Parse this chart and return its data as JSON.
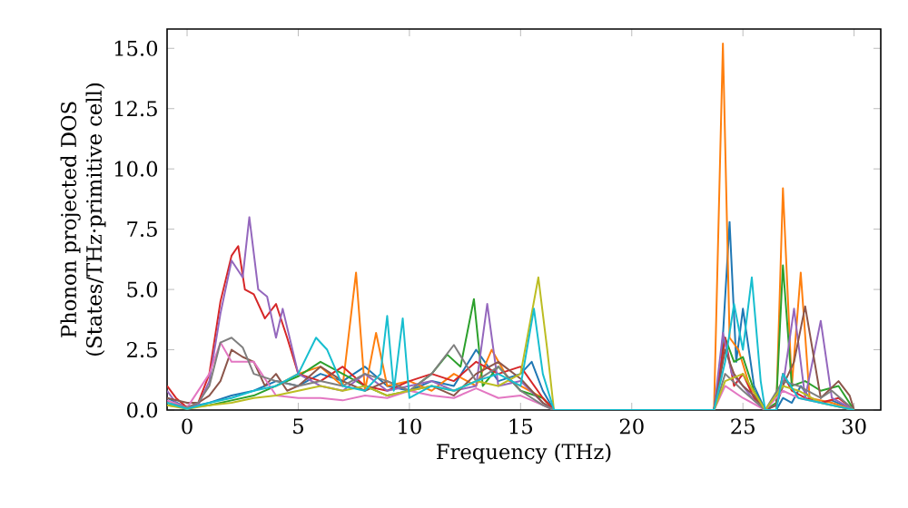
{
  "chart_data": {
    "type": "line",
    "xlabel": "Frequency (THz)",
    "ylabel": "Phonon projected DOS\n(States/THz·primitive cell)",
    "xlim": [
      -0.9,
      31.2
    ],
    "ylim": [
      0,
      15.8
    ],
    "xticks": [
      0,
      5,
      10,
      15,
      20,
      25,
      30
    ],
    "yticks": [
      {
        "value": 0,
        "label": "0.0"
      },
      {
        "value": 2.5,
        "label": "2.5"
      },
      {
        "value": 5,
        "label": "5.0"
      },
      {
        "value": 7.5,
        "label": "7.5"
      },
      {
        "value": 10,
        "label": "10.0"
      },
      {
        "value": 12.5,
        "label": "12.5"
      },
      {
        "value": 15,
        "label": "15.0"
      }
    ],
    "grid": false,
    "marker": "none",
    "line_style": "solid",
    "series": [
      {
        "color": "#1f77b4",
        "x": [
          -0.9,
          0,
          1,
          2,
          3,
          4,
          5,
          6,
          7,
          8,
          9,
          10,
          11,
          12,
          13,
          14,
          15,
          15.5,
          16,
          16.5,
          23.7,
          24.0,
          24.4,
          24.7,
          25.0,
          25.5,
          26,
          26.5,
          26.8,
          27.2,
          27.6,
          28,
          28.5,
          29,
          29.5,
          30
        ],
        "values": [
          0.5,
          0.1,
          0.3,
          0.6,
          0.8,
          1.2,
          1.0,
          1.5,
          1.2,
          1.8,
          1.0,
          0.8,
          1.2,
          1.0,
          2.5,
          1.2,
          1.5,
          2.0,
          0.8,
          0,
          0,
          1.5,
          7.8,
          2.0,
          4.2,
          1.0,
          0,
          0,
          0.5,
          0.3,
          1.0,
          0.5,
          0.3,
          0.4,
          0.2,
          0
        ]
      },
      {
        "color": "#ff7f0e",
        "x": [
          4,
          5,
          6,
          7,
          7.6,
          8,
          8.5,
          9,
          10,
          11,
          12,
          13,
          13.7,
          14.5,
          15,
          16,
          16.5,
          23.7,
          24.1,
          24.4,
          24.8,
          25.3,
          26,
          26.5,
          26.8,
          27.2,
          27.6,
          28,
          29,
          30
        ],
        "values": [
          1.0,
          1.5,
          1.8,
          1.0,
          5.7,
          0.8,
          3.2,
          1.0,
          1.2,
          0.8,
          1.5,
          1.0,
          2.5,
          1.2,
          1.0,
          0.5,
          0,
          0,
          15.2,
          3.0,
          2.5,
          1.0,
          0,
          0,
          9.2,
          1.0,
          5.7,
          0.5,
          0.3,
          0
        ]
      },
      {
        "color": "#2ca02c",
        "x": [
          -0.9,
          0,
          1,
          2,
          3,
          4,
          5,
          6,
          7,
          8,
          9,
          10,
          11,
          11.7,
          12.3,
          12.9,
          13.3,
          14,
          15,
          16,
          16.5,
          23.7,
          24.2,
          24.6,
          25,
          25.5,
          26,
          26.5,
          26.8,
          27.2,
          27.8,
          28.5,
          29.3,
          30
        ],
        "values": [
          0.2,
          0.1,
          0.2,
          0.4,
          0.6,
          1.0,
          1.4,
          2.0,
          1.5,
          1.0,
          0.6,
          0.8,
          1.5,
          2.3,
          1.8,
          4.6,
          1.0,
          1.8,
          0.8,
          0.5,
          0,
          0,
          3.0,
          2.0,
          2.2,
          0.8,
          0,
          0.3,
          6.0,
          1.0,
          1.2,
          0.8,
          1.0,
          0
        ]
      },
      {
        "color": "#d62728",
        "x": [
          -0.9,
          -0.5,
          0,
          0.5,
          1,
          1.5,
          2,
          2.3,
          2.6,
          3,
          3.5,
          4,
          4.5,
          5,
          6,
          7,
          8,
          9,
          10,
          11,
          12,
          13,
          14,
          15,
          16,
          16.5,
          23.7,
          24.2,
          24.6,
          25,
          25.5,
          26,
          26.5,
          26.8,
          27.2,
          27.8,
          28.5,
          29.3,
          30
        ],
        "values": [
          1.0,
          0.5,
          0.1,
          0.3,
          1.5,
          4.5,
          6.4,
          6.8,
          5.0,
          4.8,
          3.8,
          4.4,
          3.0,
          1.5,
          1.2,
          1.8,
          1.0,
          0.8,
          1.2,
          1.5,
          1.2,
          2.0,
          1.5,
          1.8,
          0.5,
          0,
          0,
          3.0,
          1.0,
          1.5,
          0.5,
          0,
          0.2,
          1.5,
          0.8,
          0.5,
          0.3,
          0.5,
          0
        ]
      },
      {
        "color": "#9467bd",
        "x": [
          -0.9,
          -0.5,
          0,
          0.5,
          1,
          1.5,
          2,
          2.5,
          2.8,
          3.2,
          3.6,
          4,
          4.3,
          5,
          6,
          7,
          8,
          9,
          10,
          11,
          12,
          13,
          13.5,
          14,
          15,
          16,
          16.5,
          23.7,
          24.1,
          24.5,
          25,
          25.5,
          26,
          26.5,
          26.8,
          27.3,
          27.8,
          28.5,
          29,
          30
        ],
        "values": [
          0.8,
          0.3,
          0.05,
          0.2,
          1.2,
          4.0,
          6.2,
          5.5,
          8.0,
          5.0,
          4.7,
          3.0,
          4.2,
          1.5,
          1.0,
          0.8,
          1.5,
          0.8,
          1.0,
          1.2,
          0.8,
          1.0,
          4.4,
          1.0,
          1.2,
          0.3,
          0,
          0,
          3.2,
          1.5,
          1.0,
          0.4,
          0,
          0.2,
          1.0,
          4.2,
          0.5,
          3.7,
          0.5,
          0
        ]
      },
      {
        "color": "#8c564b",
        "x": [
          -0.9,
          0,
          0.5,
          1,
          1.5,
          2,
          2.5,
          3,
          3.5,
          4,
          4.5,
          5,
          6,
          7,
          8,
          9,
          10,
          11,
          12,
          13,
          14,
          15,
          16,
          16.5,
          23.7,
          24.2,
          24.6,
          25,
          25.5,
          26,
          26.5,
          26.8,
          27.3,
          27.8,
          28.5,
          29.3,
          29.8,
          30
        ],
        "values": [
          0.5,
          0.3,
          0.3,
          0.6,
          1.2,
          2.5,
          2.2,
          2.0,
          1.0,
          1.5,
          0.8,
          1.0,
          1.8,
          1.2,
          0.8,
          1.2,
          0.8,
          1.0,
          0.6,
          1.5,
          2.0,
          1.3,
          0.3,
          0,
          0,
          2.5,
          1.5,
          1.0,
          0.6,
          0,
          0.2,
          1.0,
          2.0,
          4.3,
          0.5,
          1.2,
          0.6,
          0
        ]
      },
      {
        "color": "#e377c2",
        "x": [
          -0.9,
          0,
          1,
          1.5,
          2,
          3,
          4,
          5,
          6,
          7,
          8,
          9,
          10,
          11,
          12,
          13,
          14,
          15,
          16,
          16.5,
          23.7,
          24.2,
          25,
          26,
          26.8,
          27.5,
          28.5,
          30
        ],
        "values": [
          0.4,
          0.1,
          1.5,
          2.8,
          2.0,
          2.0,
          0.6,
          0.5,
          0.5,
          0.4,
          0.6,
          0.5,
          0.8,
          0.6,
          0.5,
          0.9,
          0.5,
          0.6,
          0.2,
          0,
          0,
          1.0,
          0.5,
          0,
          0.8,
          0.5,
          0.3,
          0
        ]
      },
      {
        "color": "#7f7f7f",
        "x": [
          -0.9,
          0,
          0.5,
          1,
          1.5,
          2,
          2.5,
          3,
          4,
          5,
          6,
          7,
          8,
          9,
          10,
          11,
          12,
          13,
          14,
          15,
          16,
          16.5,
          23.7,
          24.2,
          25,
          26,
          26.8,
          27.5,
          28.5,
          29,
          30
        ],
        "values": [
          0.3,
          0.1,
          0.3,
          1.0,
          2.8,
          3.0,
          2.6,
          1.5,
          1.2,
          1.0,
          1.2,
          1.0,
          1.5,
          1.2,
          0.8,
          1.5,
          2.7,
          1.2,
          1.8,
          0.8,
          0.2,
          0,
          0,
          1.5,
          0.8,
          0,
          1.2,
          1.0,
          0.5,
          0.8,
          0
        ]
      },
      {
        "color": "#bcbd22",
        "x": [
          -0.9,
          0,
          1,
          2,
          3,
          4,
          5,
          6,
          7,
          8,
          9,
          10,
          11,
          12,
          13,
          14,
          15,
          15.8,
          16.2,
          16.5,
          23.7,
          24.2,
          25,
          26,
          26.8,
          27.5,
          28.5,
          30
        ],
        "values": [
          0.2,
          0.05,
          0.2,
          0.3,
          0.5,
          0.6,
          0.8,
          1.0,
          0.8,
          1.0,
          0.6,
          0.8,
          1.0,
          0.8,
          1.2,
          1.0,
          1.5,
          5.5,
          2.5,
          0,
          0,
          1.2,
          1.5,
          0,
          1.0,
          0.8,
          0.3,
          0
        ]
      },
      {
        "color": "#17becf",
        "x": [
          -0.9,
          0,
          1,
          2,
          3,
          4,
          5,
          5.8,
          6.3,
          7,
          8,
          8.7,
          9,
          9.3,
          9.7,
          10,
          11,
          12,
          13,
          14,
          15,
          15.6,
          16,
          16.5,
          23.7,
          24.2,
          24.6,
          25,
          25.4,
          25.8,
          26,
          26.5,
          26.8,
          27.5,
          28.5,
          30
        ],
        "values": [
          0.3,
          0.05,
          0.3,
          0.5,
          0.8,
          1.0,
          1.5,
          3.0,
          2.5,
          1.0,
          0.8,
          1.5,
          3.9,
          0.8,
          3.8,
          0.5,
          1.0,
          0.8,
          1.2,
          1.5,
          1.0,
          4.2,
          1.5,
          0,
          0,
          2.0,
          4.4,
          2.5,
          5.5,
          1.2,
          0,
          0,
          1.5,
          0.5,
          0.3,
          0
        ]
      }
    ]
  }
}
